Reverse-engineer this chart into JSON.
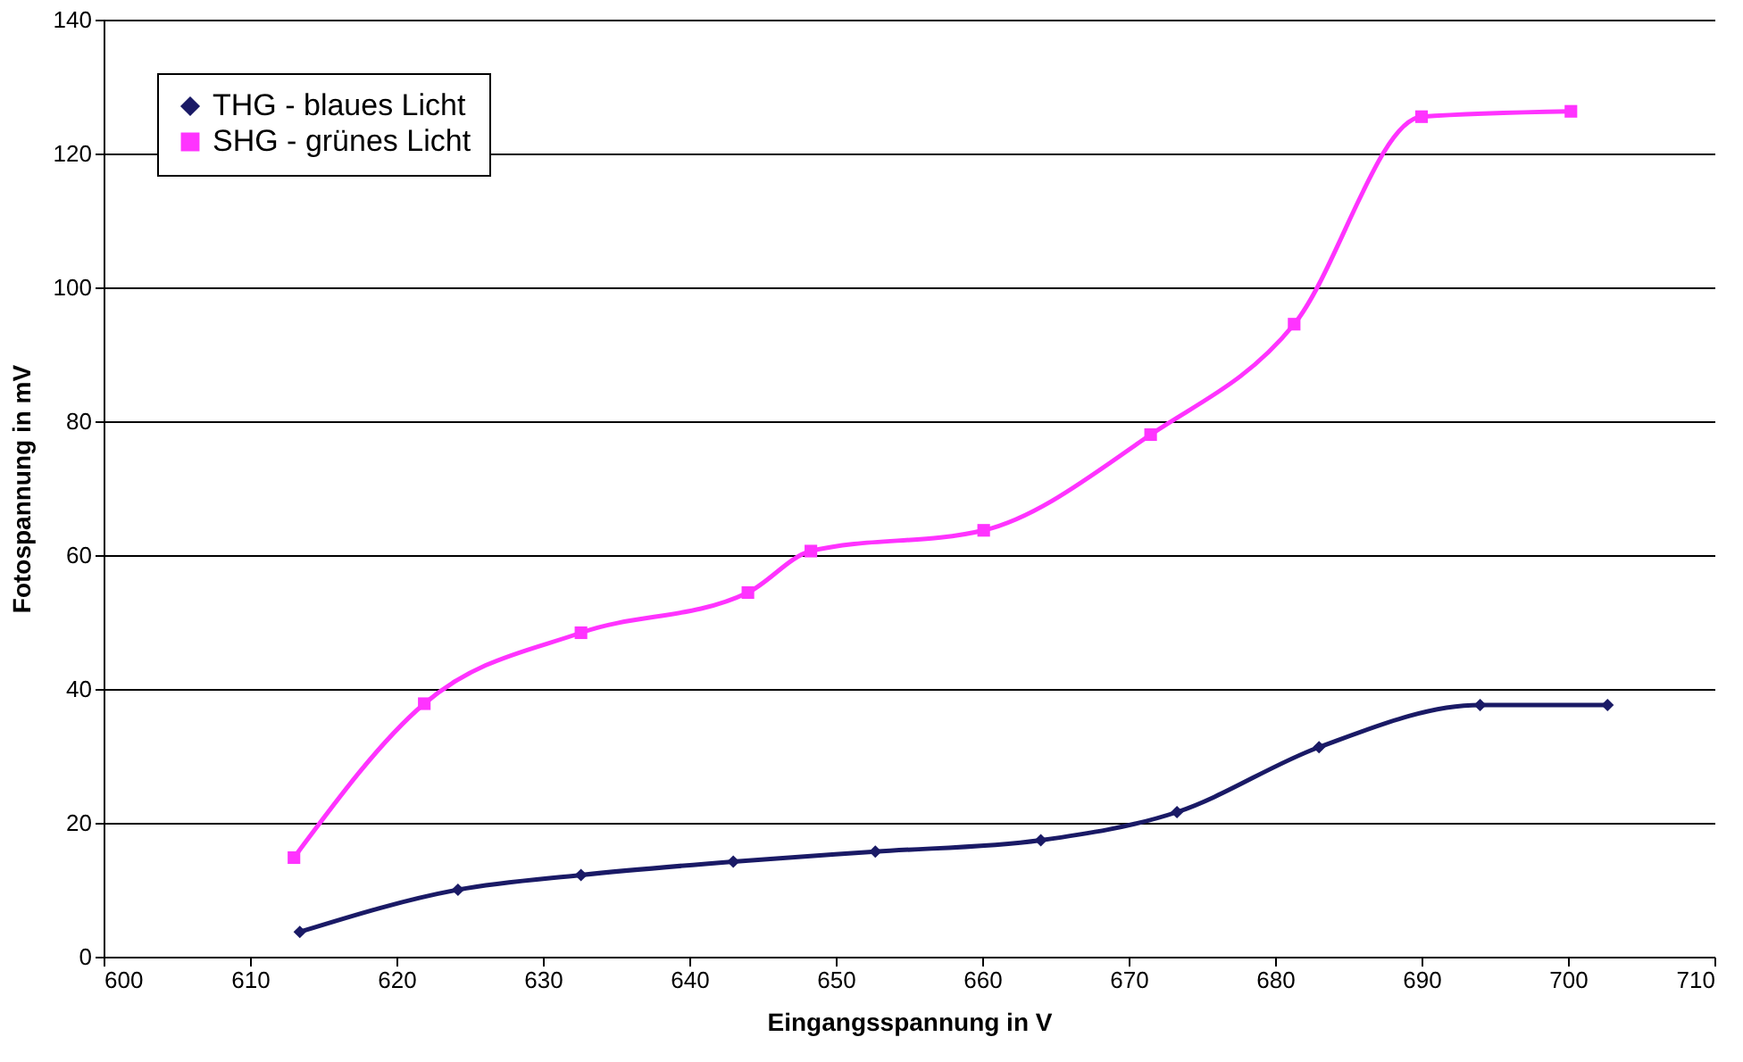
{
  "chart_data": {
    "type": "line",
    "xlabel": "Eingangsspannung in V",
    "ylabel": "Fotospannung in mV",
    "xlim": [
      600,
      710
    ],
    "xticks": [
      600,
      610,
      620,
      630,
      640,
      650,
      660,
      670,
      680,
      690,
      700,
      710
    ],
    "ylim": [
      0,
      140
    ],
    "yticks": [
      0,
      20,
      40,
      60,
      80,
      100,
      120,
      140
    ],
    "grid": "y",
    "legend": "top left",
    "line_style": "solid",
    "series": [
      {
        "name": "THG - blaues Licht",
        "color": "#1a1a66",
        "marker": "diamond",
        "x": [
          613.4,
          624.2,
          632.6,
          643.0,
          652.7,
          664.0,
          673.3,
          683.0,
          694.0,
          702.7
        ],
        "values": [
          3.7,
          10.0,
          12.2,
          14.2,
          15.7,
          17.4,
          21.6,
          31.3,
          37.6,
          37.6
        ]
      },
      {
        "name": "SHG - grünes Licht",
        "color": "#ff33ff",
        "marker": "square",
        "x": [
          613.0,
          621.9,
          632.6,
          644.0,
          648.3,
          660.1,
          671.5,
          681.3,
          690.0,
          700.2
        ],
        "values": [
          14.8,
          37.8,
          48.4,
          54.4,
          60.6,
          63.7,
          78.0,
          94.5,
          125.5,
          126.3
        ]
      }
    ]
  }
}
